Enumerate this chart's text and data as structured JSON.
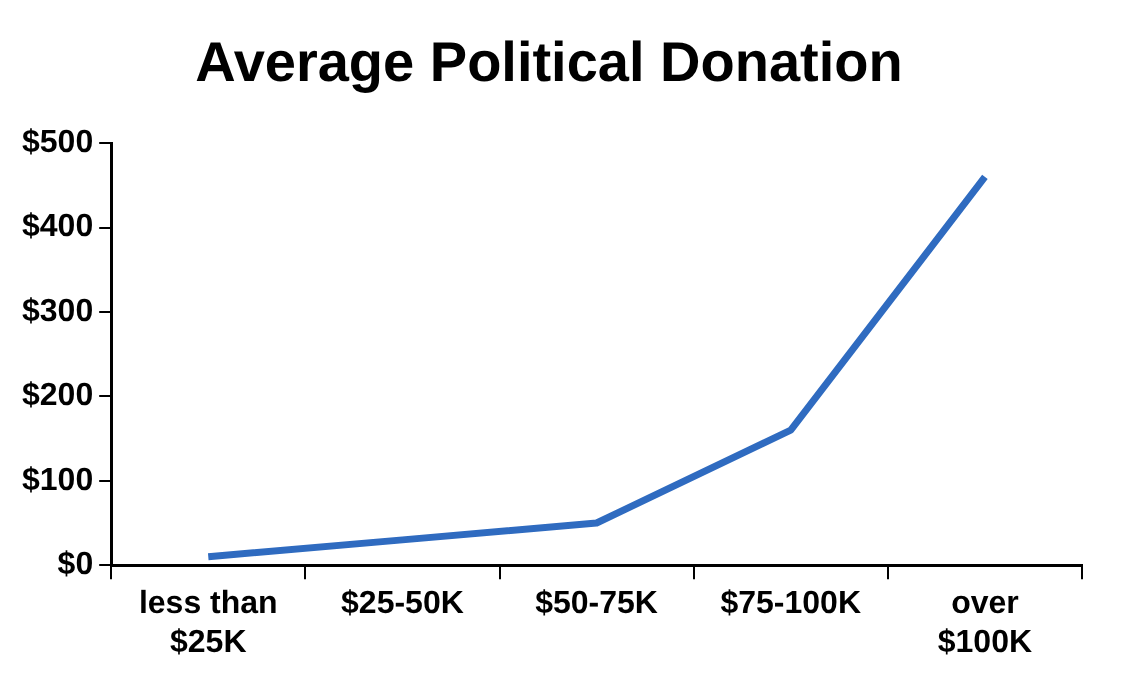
{
  "chart_data": {
    "type": "line",
    "title": "Average Political Donation",
    "categories": [
      "less than $25K",
      "$25-50K",
      "$50-75K",
      "$75-100K",
      "over $100K"
    ],
    "series": [
      {
        "color": "#2f6bc0",
        "values": [
          10,
          30,
          50,
          160,
          460
        ]
      }
    ],
    "ylim": [
      0,
      500
    ],
    "yticks": [
      {
        "value": 0,
        "label": "$0"
      },
      {
        "value": 100,
        "label": "$100"
      },
      {
        "value": 200,
        "label": "$200"
      },
      {
        "value": 300,
        "label": "$300"
      },
      {
        "value": 400,
        "label": "$400"
      },
      {
        "value": 500,
        "label": "$500"
      }
    ],
    "grid": false,
    "legend": false,
    "marker": "none",
    "line_style": "solid"
  }
}
